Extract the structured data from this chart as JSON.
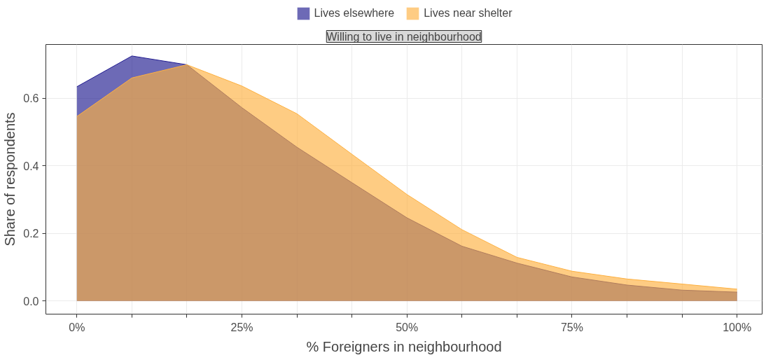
{
  "chart_data": {
    "type": "area",
    "subtitle": "Willing to live in neighbourhood",
    "xlabel": "% Foreigners in neighbourhood",
    "ylabel": "Share of respondents",
    "x": [
      0,
      8.33,
      16.67,
      25,
      33.33,
      41.67,
      50,
      58.33,
      66.67,
      75,
      83.33,
      91.67,
      100
    ],
    "series": [
      {
        "name": "Lives elsewhere",
        "color": "#1f1a8f",
        "values": [
          0.634,
          0.725,
          0.699,
          0.572,
          0.455,
          0.35,
          0.246,
          0.162,
          0.112,
          0.071,
          0.047,
          0.032,
          0.026
        ]
      },
      {
        "name": "Lives near shelter",
        "color": "#fdb040",
        "values": [
          0.546,
          0.66,
          0.699,
          0.636,
          0.554,
          0.434,
          0.315,
          0.211,
          0.129,
          0.088,
          0.065,
          0.05,
          0.035
        ]
      }
    ],
    "xlim": [
      -4.7,
      103.8
    ],
    "ylim": [
      -0.039,
      0.759
    ],
    "xticks": [
      {
        "value": 0,
        "label": "0%"
      },
      {
        "value": 8.33,
        "label": null
      },
      {
        "value": 16.67,
        "label": null
      },
      {
        "value": 25,
        "label": "25%"
      },
      {
        "value": 33.33,
        "label": null
      },
      {
        "value": 41.67,
        "label": null
      },
      {
        "value": 50,
        "label": "50%"
      },
      {
        "value": 58.33,
        "label": null
      },
      {
        "value": 66.67,
        "label": null
      },
      {
        "value": 75,
        "label": "75%"
      },
      {
        "value": 83.33,
        "label": null
      },
      {
        "value": 91.67,
        "label": null
      },
      {
        "value": 100,
        "label": "100%"
      }
    ],
    "yticks": [
      {
        "value": 0,
        "label": "0.0"
      },
      {
        "value": 0.2,
        "label": "0.2"
      },
      {
        "value": 0.4,
        "label": "0.4"
      },
      {
        "value": 0.6,
        "label": "0.6"
      }
    ],
    "grid": true,
    "legend": "top"
  }
}
